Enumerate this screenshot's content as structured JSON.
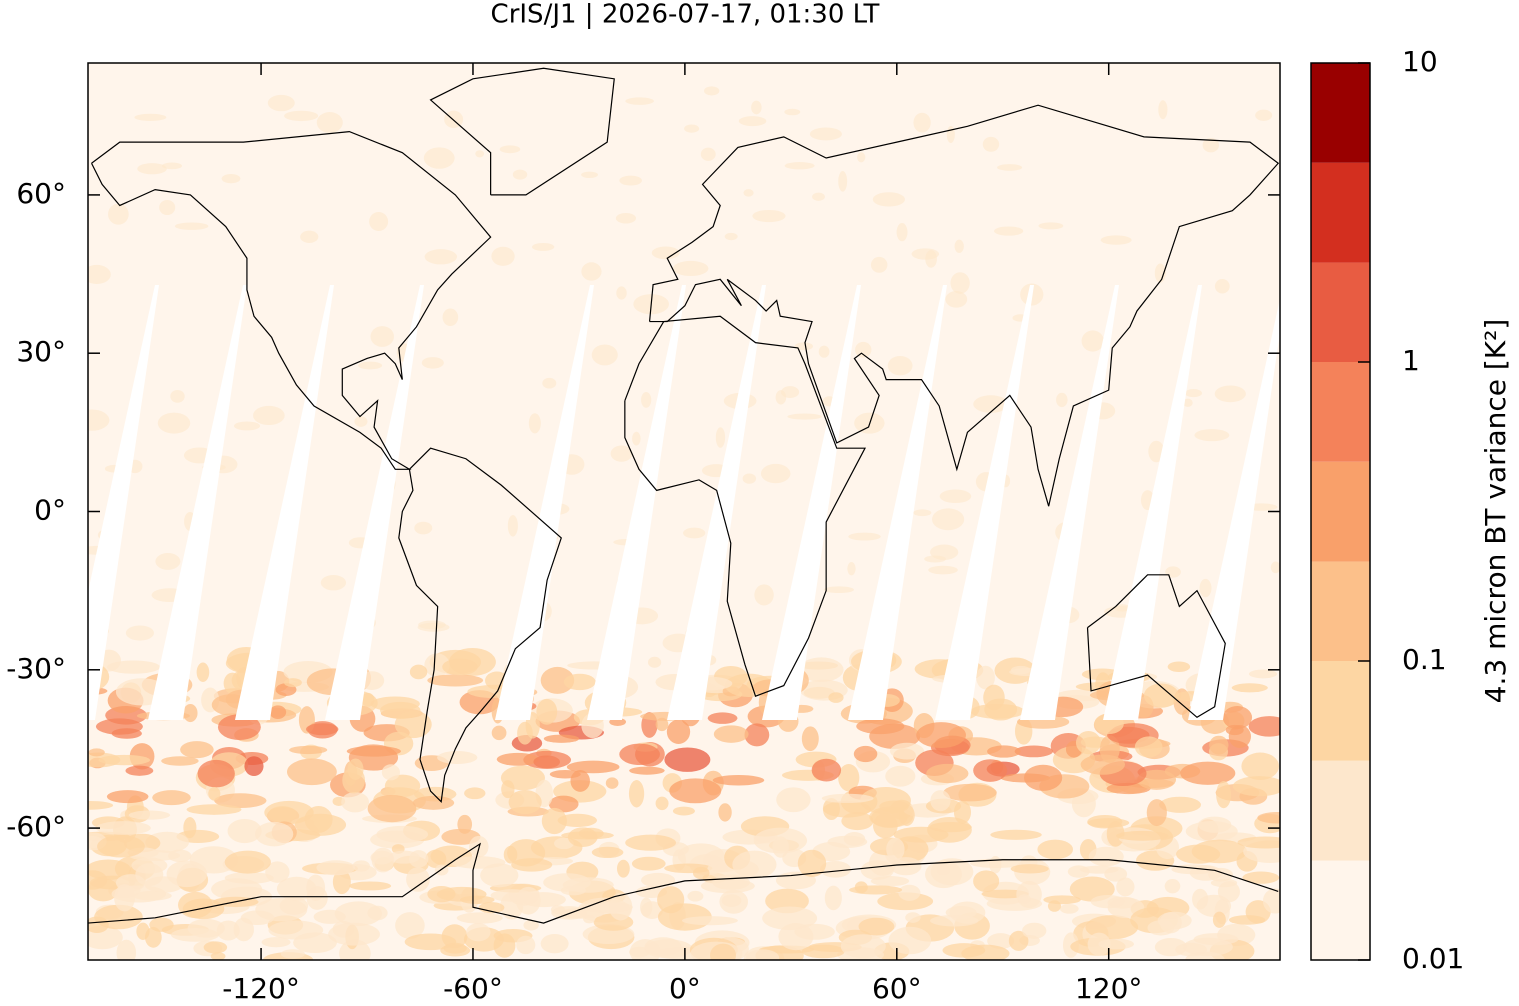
{
  "chart_data": {
    "type": "map",
    "title": "CrIS/J1 | 2026-07-17, 01:30 LT",
    "xlim": [
      -169,
      168.5
    ],
    "ylim": [
      -85,
      85
    ],
    "xticks": [
      {
        "value": -120,
        "label": "-120°"
      },
      {
        "value": -60,
        "label": "-60°"
      },
      {
        "value": 0,
        "label": "0°"
      },
      {
        "value": 60,
        "label": "60°"
      },
      {
        "value": 120,
        "label": "120°"
      }
    ],
    "yticks": [
      {
        "value": 60,
        "label": "60°"
      },
      {
        "value": 30,
        "label": "30°"
      },
      {
        "value": 0,
        "label": "0°"
      },
      {
        "value": -30,
        "label": "-30°"
      },
      {
        "value": -60,
        "label": "-60°"
      }
    ],
    "colorbar": {
      "label": "4.3 micron BT variance [K²]",
      "log": true,
      "ylim": [
        0.01,
        10
      ],
      "yticks": [
        0.01,
        0.1,
        1,
        10
      ],
      "levels": [
        0.01,
        0.0215,
        0.0464,
        0.1,
        0.215,
        0.464,
        1,
        2.15,
        4.64,
        10
      ],
      "colors": [
        "#fff5eb",
        "#fde7cc",
        "#fdd6a3",
        "#fcc08a",
        "#f9a06a",
        "#f4825a",
        "#e85c42",
        "#d32f1f",
        "#990000"
      ]
    }
  }
}
